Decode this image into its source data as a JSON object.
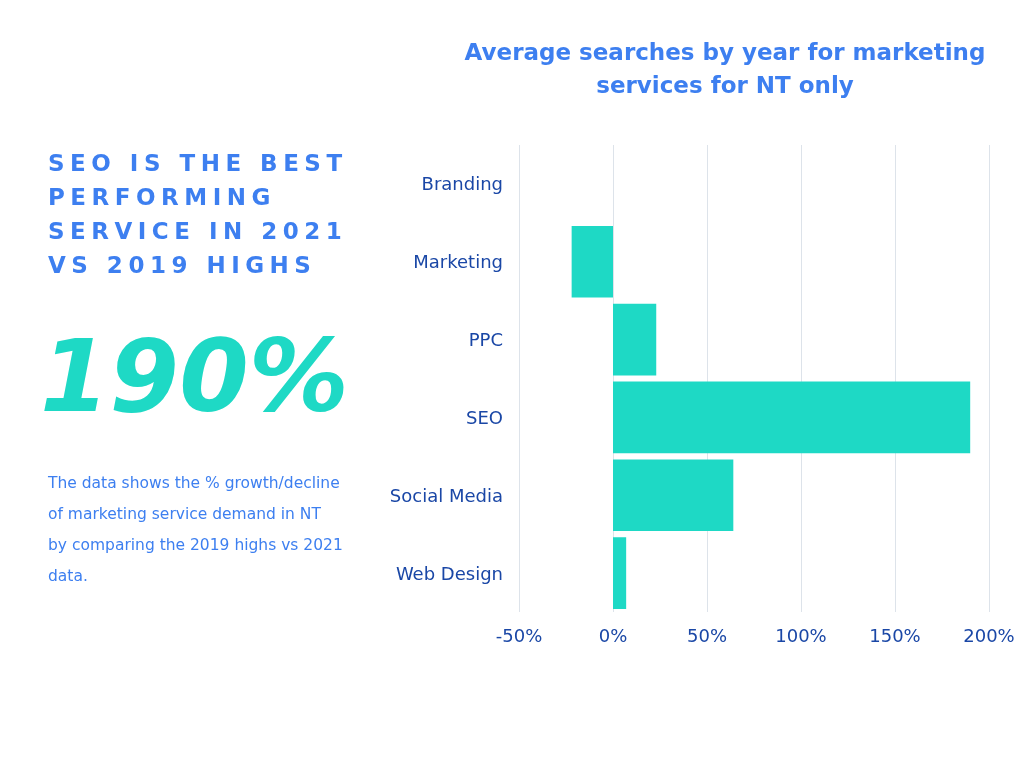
{
  "chart_data": {
    "type": "bar",
    "orientation": "horizontal",
    "title": "Average searches by year for marketing services for NT only",
    "subtitle": "SEO IS THE BEST PERFORMING SERVICE IN 2021 VS 2019 HIGHS",
    "annotations": [
      "190%",
      "The data shows the % growth/decline of marketing service demand in NT by comparing the 2019 highs vs 2021 data."
    ],
    "categories": [
      "Branding",
      "Marketing",
      "PPC",
      "SEO",
      "Social Media",
      "Web Design"
    ],
    "values": [
      0,
      -22,
      23,
      190,
      64,
      7
    ],
    "color": "#1ed9c5",
    "xlim": [
      -50,
      200
    ],
    "xticks": [
      {
        "value": -50,
        "label": "-50%"
      },
      {
        "value": 0,
        "label": "0%"
      },
      {
        "value": 50,
        "label": "50%"
      },
      {
        "value": 100,
        "label": "100%"
      },
      {
        "value": 150,
        "label": "150%"
      },
      {
        "value": 200,
        "label": "200%"
      }
    ],
    "grid": "x"
  }
}
